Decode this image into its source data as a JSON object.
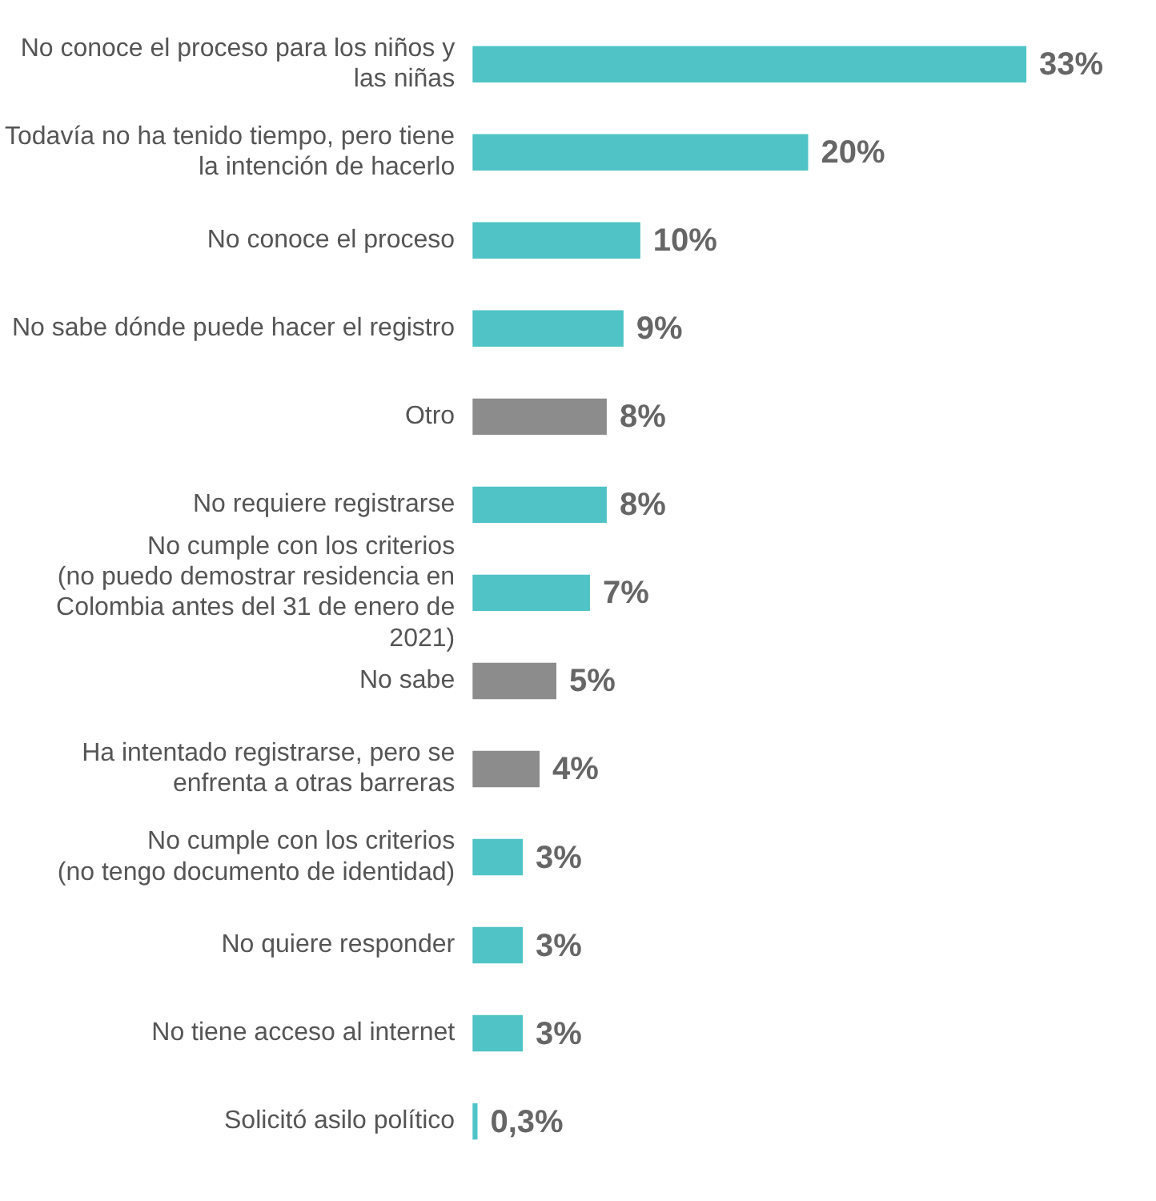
{
  "chart_data": {
    "type": "bar",
    "orientation": "horizontal",
    "categories": [
      "No conoce el proceso para los niños y las niñas",
      "Todavía no ha tenido tiempo, pero tiene la intención de hacerlo",
      "No conoce el proceso",
      "No sabe dónde puede hacer el registro",
      "Otro",
      "No requiere registrarse",
      "No cumple con los criterios (no puedo demostrar residencia en Colombia antes del 31 de enero de 2021)",
      "No sabe",
      "Ha intentado registrarse, pero se enfrenta a otras barreras",
      "No cumple con los criterios (no tengo documento de identidad)",
      "No quiere responder",
      "No tiene acceso al internet",
      "Solicitó asilo político"
    ],
    "values": [
      33,
      20,
      10,
      9,
      8,
      8,
      7,
      5,
      4,
      3,
      3,
      3,
      0.3
    ],
    "value_labels": [
      "33%",
      "20%",
      "10%",
      "9%",
      "8%",
      "8%",
      "7%",
      "5%",
      "4%",
      "3%",
      "3%",
      "3%",
      "0,3%"
    ],
    "colors": [
      "#4fc3c6",
      "#4fc3c6",
      "#4fc3c6",
      "#4fc3c6",
      "#8c8c8c",
      "#4fc3c6",
      "#4fc3c6",
      "#8c8c8c",
      "#8c8c8c",
      "#4fc3c6",
      "#4fc3c6",
      "#4fc3c6",
      "#4fc3c6"
    ],
    "grid": false,
    "legend": false,
    "tick_labels": "y"
  }
}
